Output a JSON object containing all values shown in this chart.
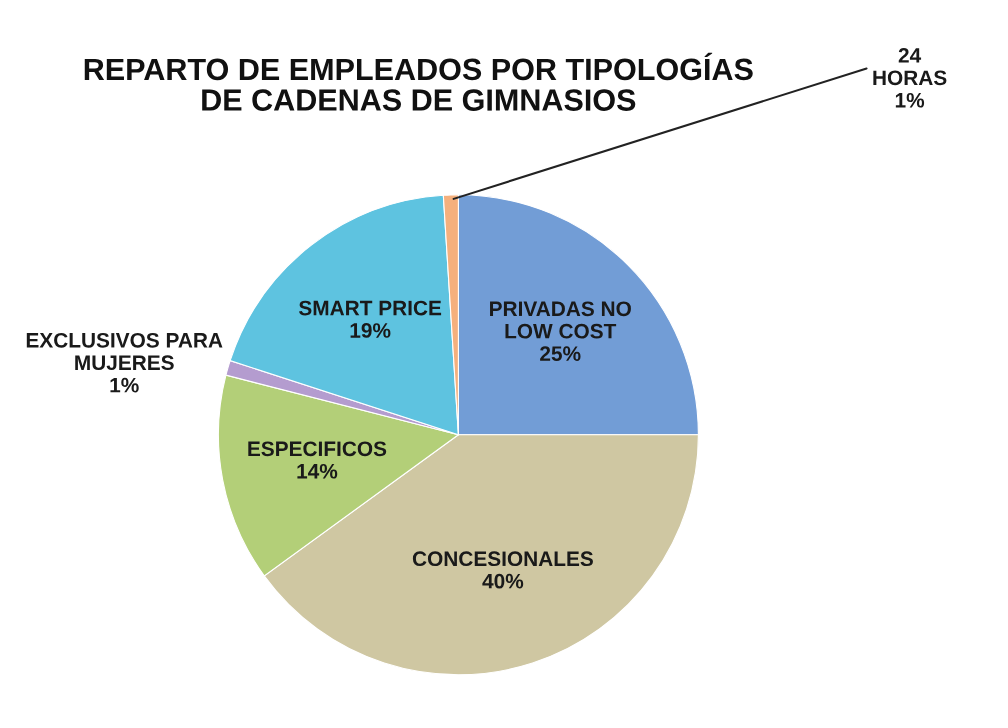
{
  "chart_data": {
    "type": "pie",
    "title": "REPARTO DE EMPLEADOS POR TIPOLOGÍAS\nDE CADENAS DE GIMNASIOS",
    "categories": [
      "PRIVADAS NO\nLOW COST",
      "CONCESIONALES",
      "ESPECIFICOS",
      "EXCLUSIVOS PARA\nMUJERES",
      "SMART PRICE",
      "24\nHORAS"
    ],
    "values": [
      25,
      40,
      14,
      1,
      19,
      1
    ],
    "colors": [
      "#729dd6",
      "#cfc7a2",
      "#b3cf78",
      "#b49ccf",
      "#5ec3e0",
      "#f5b07d"
    ],
    "value_labels": [
      "25%",
      "40%",
      "14%",
      "1%",
      "19%",
      "1%"
    ]
  }
}
